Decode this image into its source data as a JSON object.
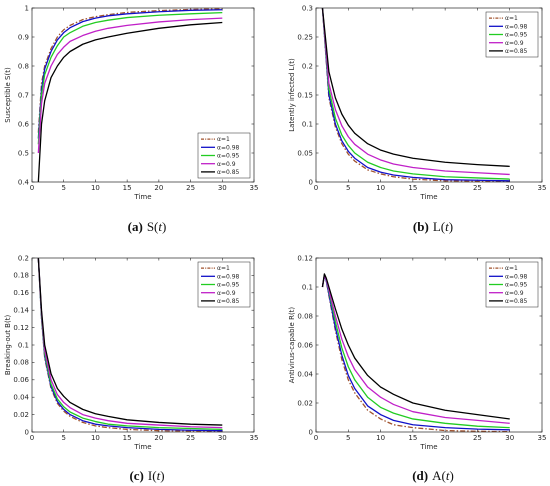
{
  "legend_greek": "α",
  "chart_data": [
    {
      "type": "line",
      "caption": {
        "letter": "(a)",
        "func": "S",
        "var": "t"
      },
      "xlabel": "Time",
      "ylabel": "Susceptible S(t)",
      "xlim": [
        0,
        35
      ],
      "ylim": [
        0.4,
        1
      ],
      "xticks": [
        0,
        5,
        10,
        15,
        20,
        25,
        30,
        35
      ],
      "yticks": [
        0.4,
        0.5,
        0.6,
        0.7,
        0.8,
        0.9,
        1
      ],
      "ytick_labels": [
        "0.4",
        "0.5",
        "0.6",
        "0.7",
        "0.8",
        "0.9",
        "1"
      ],
      "legend": "bottom-right",
      "series": [
        {
          "name": "α=1",
          "color": "#a0522d",
          "dash": "dashdot",
          "x": [
            1,
            1.5,
            2,
            3,
            4,
            5,
            6,
            8,
            10,
            12,
            15,
            20,
            25,
            30
          ],
          "y": [
            0.57,
            0.74,
            0.8,
            0.86,
            0.9,
            0.925,
            0.94,
            0.96,
            0.97,
            0.977,
            0.985,
            0.991,
            0.995,
            0.997
          ]
        },
        {
          "name": "α=0.98",
          "color": "#1010c8",
          "dash": "solid",
          "x": [
            1,
            1.5,
            2,
            3,
            4,
            5,
            6,
            8,
            10,
            12,
            15,
            20,
            25,
            30
          ],
          "y": [
            0.55,
            0.72,
            0.79,
            0.85,
            0.89,
            0.915,
            0.932,
            0.953,
            0.965,
            0.973,
            0.98,
            0.987,
            0.992,
            0.994
          ]
        },
        {
          "name": "α=0.95",
          "color": "#22cc22",
          "dash": "solid",
          "x": [
            1,
            1.5,
            2,
            3,
            4,
            5,
            6,
            8,
            10,
            12,
            15,
            20,
            25,
            30
          ],
          "y": [
            0.53,
            0.7,
            0.77,
            0.83,
            0.87,
            0.9,
            0.915,
            0.937,
            0.95,
            0.958,
            0.967,
            0.975,
            0.98,
            0.984
          ]
        },
        {
          "name": "α=0.9",
          "color": "#c020c8",
          "dash": "solid",
          "x": [
            1,
            1.5,
            2,
            3,
            4,
            5,
            6,
            8,
            10,
            12,
            15,
            20,
            25,
            30
          ],
          "y": [
            0.5,
            0.67,
            0.74,
            0.8,
            0.84,
            0.865,
            0.885,
            0.905,
            0.92,
            0.93,
            0.94,
            0.952,
            0.96,
            0.965
          ]
        },
        {
          "name": "α=0.85",
          "color": "#000000",
          "dash": "solid",
          "x": [
            1,
            1.5,
            2,
            3,
            4,
            5,
            6,
            8,
            10,
            12,
            15,
            20,
            25,
            30
          ],
          "y": [
            0.4,
            0.6,
            0.68,
            0.76,
            0.8,
            0.83,
            0.85,
            0.875,
            0.89,
            0.9,
            0.913,
            0.93,
            0.942,
            0.95
          ]
        }
      ]
    },
    {
      "type": "line",
      "caption": {
        "letter": "(b)",
        "func": "L",
        "var": "t"
      },
      "xlabel": "Time",
      "ylabel": "Latently infected L(t)",
      "xlim": [
        0,
        35
      ],
      "ylim": [
        0,
        0.3
      ],
      "xticks": [
        0,
        5,
        10,
        15,
        20,
        25,
        30,
        35
      ],
      "yticks": [
        0,
        0.05,
        0.1,
        0.15,
        0.2,
        0.25,
        0.3
      ],
      "ytick_labels": [
        "0",
        "0.05",
        "0.1",
        "0.15",
        "0.2",
        "0.25",
        "0.3"
      ],
      "legend": "top-right",
      "series": [
        {
          "name": "α=1",
          "color": "#a0522d",
          "dash": "dashdot",
          "x": [
            1,
            2,
            3,
            4,
            5,
            6,
            8,
            10,
            12,
            15,
            20,
            25,
            30
          ],
          "y": [
            0.3,
            0.145,
            0.095,
            0.066,
            0.048,
            0.036,
            0.021,
            0.014,
            0.009,
            0.005,
            0.002,
            0.001,
            0.0005
          ]
        },
        {
          "name": "α=0.98",
          "color": "#1010c8",
          "dash": "solid",
          "x": [
            1,
            2,
            3,
            4,
            5,
            6,
            8,
            10,
            12,
            15,
            20,
            25,
            30
          ],
          "y": [
            0.3,
            0.15,
            0.1,
            0.071,
            0.053,
            0.041,
            0.025,
            0.017,
            0.012,
            0.008,
            0.004,
            0.003,
            0.002
          ]
        },
        {
          "name": "α=0.95",
          "color": "#22cc22",
          "dash": "solid",
          "x": [
            1,
            2,
            3,
            4,
            5,
            6,
            8,
            10,
            12,
            15,
            20,
            25,
            30
          ],
          "y": [
            0.3,
            0.16,
            0.11,
            0.081,
            0.063,
            0.05,
            0.034,
            0.025,
            0.019,
            0.014,
            0.009,
            0.007,
            0.005
          ]
        },
        {
          "name": "α=0.9",
          "color": "#c020c8",
          "dash": "solid",
          "x": [
            1,
            2,
            3,
            4,
            5,
            6,
            8,
            10,
            12,
            15,
            20,
            25,
            30
          ],
          "y": [
            0.3,
            0.17,
            0.125,
            0.097,
            0.078,
            0.065,
            0.048,
            0.038,
            0.031,
            0.025,
            0.019,
            0.016,
            0.013
          ]
        },
        {
          "name": "α=0.85",
          "color": "#000000",
          "dash": "solid",
          "x": [
            1,
            2,
            3,
            4,
            5,
            6,
            8,
            10,
            12,
            15,
            20,
            25,
            30
          ],
          "y": [
            0.3,
            0.19,
            0.145,
            0.117,
            0.098,
            0.084,
            0.066,
            0.055,
            0.048,
            0.041,
            0.034,
            0.03,
            0.027
          ]
        }
      ]
    },
    {
      "type": "line",
      "caption": {
        "letter": "(c)",
        "func": "I",
        "var": "t"
      },
      "xlabel": "Time",
      "ylabel": "Breaking-out B(t)",
      "xlim": [
        0,
        35
      ],
      "ylim": [
        0,
        0.2
      ],
      "xticks": [
        0,
        5,
        10,
        15,
        20,
        25,
        30,
        35
      ],
      "yticks": [
        0,
        0.02,
        0.04,
        0.06,
        0.08,
        0.1,
        0.12,
        0.14,
        0.16,
        0.18,
        0.2
      ],
      "ytick_labels": [
        "0",
        "0.02",
        "0.04",
        "0.06",
        "0.08",
        "0.1",
        "0.12",
        "0.14",
        "0.16",
        "0.18",
        "0.2"
      ],
      "legend": "top-right",
      "series": [
        {
          "name": "α=1",
          "color": "#a0522d",
          "dash": "dashdot",
          "x": [
            1,
            1.5,
            2,
            3,
            4,
            5,
            6,
            8,
            10,
            12,
            15,
            20,
            25,
            30
          ],
          "y": [
            0.2,
            0.13,
            0.085,
            0.05,
            0.033,
            0.024,
            0.018,
            0.011,
            0.007,
            0.005,
            0.003,
            0.0015,
            0.001,
            0.0005
          ]
        },
        {
          "name": "α=0.98",
          "color": "#1010c8",
          "dash": "solid",
          "x": [
            1,
            1.5,
            2,
            3,
            4,
            5,
            6,
            8,
            10,
            12,
            15,
            20,
            25,
            30
          ],
          "y": [
            0.2,
            0.132,
            0.087,
            0.052,
            0.035,
            0.026,
            0.02,
            0.013,
            0.009,
            0.007,
            0.005,
            0.003,
            0.002,
            0.0015
          ]
        },
        {
          "name": "α=0.95",
          "color": "#22cc22",
          "dash": "solid",
          "x": [
            1,
            1.5,
            2,
            3,
            4,
            5,
            6,
            8,
            10,
            12,
            15,
            20,
            25,
            30
          ],
          "y": [
            0.2,
            0.134,
            0.09,
            0.055,
            0.038,
            0.029,
            0.023,
            0.016,
            0.012,
            0.009,
            0.007,
            0.005,
            0.004,
            0.003
          ]
        },
        {
          "name": "α=0.9",
          "color": "#c020c8",
          "dash": "solid",
          "x": [
            1,
            1.5,
            2,
            3,
            4,
            5,
            6,
            8,
            10,
            12,
            15,
            20,
            25,
            30
          ],
          "y": [
            0.2,
            0.137,
            0.094,
            0.06,
            0.043,
            0.034,
            0.028,
            0.02,
            0.016,
            0.013,
            0.01,
            0.008,
            0.006,
            0.005
          ]
        },
        {
          "name": "α=0.85",
          "color": "#000000",
          "dash": "solid",
          "x": [
            1,
            1.5,
            2,
            3,
            4,
            5,
            6,
            8,
            10,
            12,
            15,
            20,
            25,
            30
          ],
          "y": [
            0.2,
            0.14,
            0.1,
            0.067,
            0.05,
            0.041,
            0.034,
            0.026,
            0.021,
            0.018,
            0.014,
            0.011,
            0.009,
            0.008
          ]
        }
      ]
    },
    {
      "type": "line",
      "caption": {
        "letter": "(d)",
        "func": "A",
        "var": "t"
      },
      "xlabel": "Time",
      "ylabel": "Antivirus-capable R(t)",
      "xlim": [
        0,
        35
      ],
      "ylim": [
        0,
        0.12
      ],
      "xticks": [
        0,
        5,
        10,
        15,
        20,
        25,
        30,
        35
      ],
      "yticks": [
        0,
        0.02,
        0.04,
        0.06,
        0.08,
        0.1,
        0.12
      ],
      "ytick_labels": [
        "0",
        "0.02",
        "0.04",
        "0.06",
        "0.08",
        "0.1",
        "0.12"
      ],
      "legend": "top-right",
      "series": [
        {
          "name": "α=1",
          "color": "#a0522d",
          "dash": "dashdot",
          "x": [
            1,
            1.3,
            1.6,
            2,
            3,
            4,
            5,
            6,
            8,
            10,
            12,
            15,
            20,
            25,
            30
          ],
          "y": [
            0.1,
            0.108,
            0.104,
            0.094,
            0.07,
            0.05,
            0.036,
            0.027,
            0.015,
            0.009,
            0.005,
            0.003,
            0.001,
            0.0005,
            0.0002
          ]
        },
        {
          "name": "α=0.98",
          "color": "#1010c8",
          "dash": "solid",
          "x": [
            1,
            1.3,
            1.6,
            2,
            3,
            4,
            5,
            6,
            8,
            10,
            12,
            15,
            20,
            25,
            30
          ],
          "y": [
            0.1,
            0.108,
            0.104,
            0.095,
            0.072,
            0.053,
            0.039,
            0.03,
            0.018,
            0.012,
            0.008,
            0.005,
            0.003,
            0.002,
            0.0015
          ]
        },
        {
          "name": "α=0.95",
          "color": "#22cc22",
          "dash": "solid",
          "x": [
            1,
            1.3,
            1.6,
            2,
            3,
            4,
            5,
            6,
            8,
            10,
            12,
            15,
            20,
            25,
            30
          ],
          "y": [
            0.1,
            0.108,
            0.105,
            0.097,
            0.076,
            0.058,
            0.045,
            0.036,
            0.024,
            0.017,
            0.013,
            0.009,
            0.006,
            0.004,
            0.003
          ]
        },
        {
          "name": "α=0.9",
          "color": "#c020c8",
          "dash": "solid",
          "x": [
            1,
            1.3,
            1.6,
            2,
            3,
            4,
            5,
            6,
            8,
            10,
            12,
            15,
            20,
            25,
            30
          ],
          "y": [
            0.1,
            0.108,
            0.105,
            0.098,
            0.08,
            0.064,
            0.052,
            0.043,
            0.031,
            0.024,
            0.019,
            0.014,
            0.01,
            0.008,
            0.006
          ]
        },
        {
          "name": "α=0.85",
          "color": "#000000",
          "dash": "solid",
          "x": [
            1,
            1.3,
            1.6,
            2,
            3,
            4,
            5,
            6,
            8,
            10,
            12,
            15,
            20,
            25,
            30
          ],
          "y": [
            0.1,
            0.109,
            0.106,
            0.1,
            0.085,
            0.071,
            0.06,
            0.051,
            0.039,
            0.031,
            0.026,
            0.02,
            0.015,
            0.012,
            0.009
          ]
        }
      ]
    }
  ]
}
